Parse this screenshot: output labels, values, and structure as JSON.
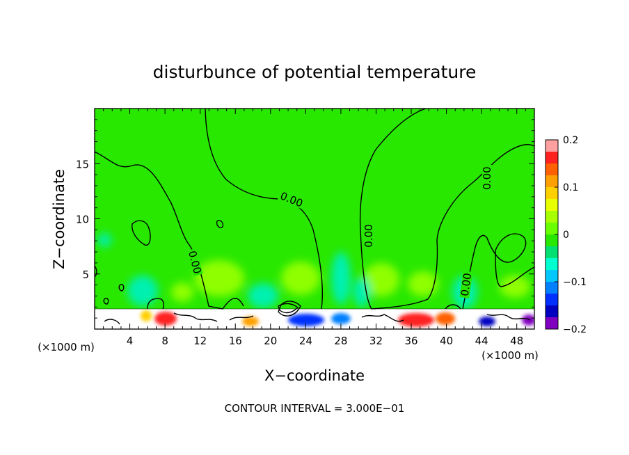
{
  "chart_data": {
    "type": "heatmap",
    "title": "disturbunce of potential temperature",
    "xlabel": "X−coordinate",
    "ylabel": "Z−coordinate",
    "x_unit_left": "(×1000 m)",
    "x_unit_right": "(×1000 m)",
    "xlim": [
      0,
      50
    ],
    "ylim": [
      0,
      20
    ],
    "x_ticks": [
      4,
      8,
      12,
      16,
      20,
      24,
      28,
      32,
      36,
      40,
      44,
      48
    ],
    "y_ticks": [
      5,
      10,
      15
    ],
    "colorbar": {
      "range": [
        -0.2,
        0.2
      ],
      "ticks": [
        "0.2",
        "0.1",
        "0",
        "−0.1",
        "−0.2"
      ],
      "tick_values": [
        0.2,
        0.1,
        0,
        -0.1,
        -0.2
      ],
      "colors": [
        "#ffa0a0",
        "#ff2020",
        "#ff6000",
        "#ffa000",
        "#ffd000",
        "#e8ff00",
        "#a8ff00",
        "#6aff00",
        "#28e800",
        "#00e070",
        "#00ffd0",
        "#00c8ff",
        "#0080ff",
        "#0030ff",
        "#0000c0",
        "#8000c0"
      ]
    },
    "contour_labels": [
      "0.00",
      "0.00",
      "0.00",
      "0.00",
      "0.00"
    ],
    "footer": "CONTOUR INTERVAL = 3.000E−01",
    "colors": {
      "background_field": "#28e800",
      "positive_light": "#8fff00",
      "negative_light": "#00f0b0"
    }
  }
}
